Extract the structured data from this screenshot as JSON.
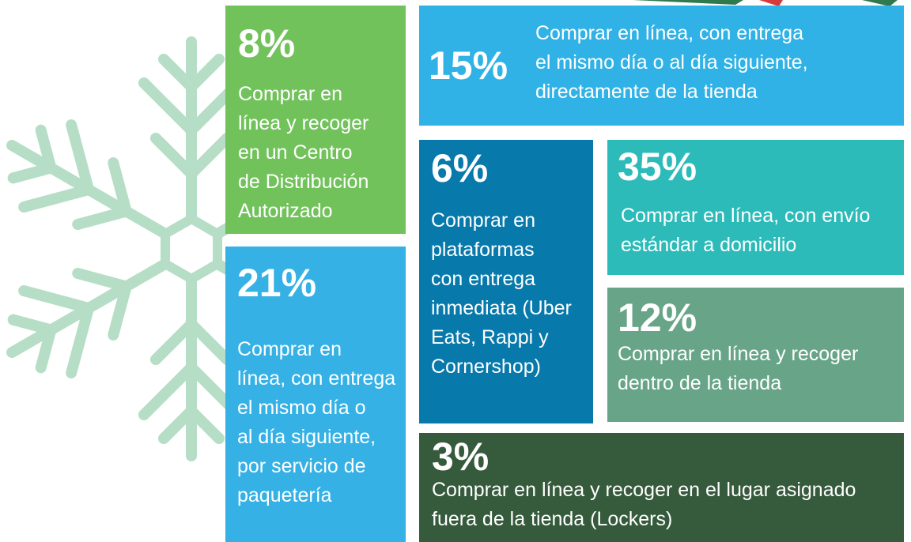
{
  "tiles": [
    {
      "percent": "8%",
      "lines": [
        "Comprar en",
        "línea y recoger",
        "en un Centro",
        "de Distribución",
        "Autorizado"
      ]
    },
    {
      "percent": "21%",
      "lines": [
        "Comprar en",
        "línea, con entrega",
        "el mismo día o",
        "al día siguiente,",
        "por servicio de",
        "paquetería"
      ]
    },
    {
      "percent": "15%",
      "lines": [
        "Comprar en línea, con entrega",
        "el mismo día o al día siguiente,",
        "directamente de la tienda"
      ]
    },
    {
      "percent": "6%",
      "lines": [
        "Comprar en",
        "plataformas",
        "con entrega",
        "inmediata (Uber",
        "Eats, Rappi y",
        "Cornershop)"
      ]
    },
    {
      "percent": "35%",
      "lines": [
        "Comprar en línea, con envío",
        "estándar a domicilio"
      ]
    },
    {
      "percent": "12%",
      "lines": [
        "Comprar en línea y recoger",
        "dentro de la tienda"
      ]
    },
    {
      "percent": "3%",
      "lines": [
        "Comprar en línea y recoger en el lugar asignado",
        "fuera de la tienda (Lockers)"
      ]
    }
  ]
}
